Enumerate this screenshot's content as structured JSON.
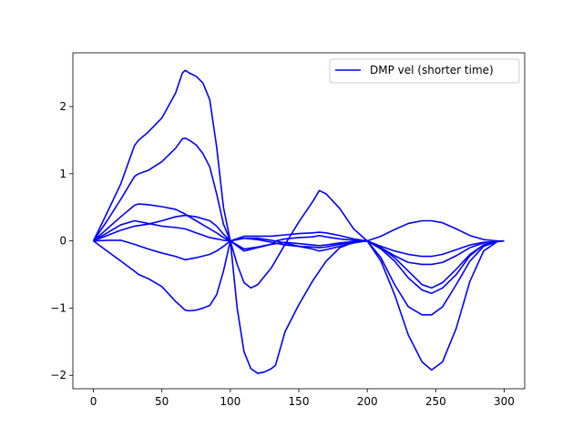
{
  "chart_data": {
    "type": "line",
    "title": "",
    "xlabel": "",
    "ylabel": "",
    "xlim": [
      -15,
      315
    ],
    "ylim": [
      -2.2,
      2.8
    ],
    "xticks": [
      0,
      50,
      100,
      150,
      200,
      250,
      300
    ],
    "yticks": [
      -2,
      -1,
      0,
      1,
      2
    ],
    "xtick_labels": [
      "0",
      "50",
      "100",
      "150",
      "200",
      "250",
      "300"
    ],
    "ytick_labels": [
      "−2",
      "−1",
      "0",
      "1",
      "2"
    ],
    "grid": false,
    "legend": {
      "position": "top-right",
      "entries": [
        "DMP vel (shorter time)"
      ]
    },
    "line_color": "#0000ff",
    "series": [
      {
        "name": "DMP vel (shorter time)",
        "x": [
          0,
          10,
          20,
          30,
          33,
          40,
          50,
          60,
          65,
          67,
          70,
          75,
          80,
          85,
          90,
          95,
          100,
          110,
          120,
          130,
          133,
          140,
          150,
          160,
          165,
          170,
          180,
          190,
          200,
          210,
          220,
          230,
          240,
          247,
          255,
          265,
          275,
          285,
          295,
          300
        ],
        "y": [
          0,
          0.42,
          0.85,
          1.42,
          1.5,
          1.62,
          1.83,
          2.2,
          2.5,
          2.54,
          2.5,
          2.45,
          2.35,
          2.1,
          1.4,
          0.5,
          0,
          -0.15,
          -0.1,
          -0.05,
          0,
          0.03,
          0.05,
          0.06,
          0.08,
          0.06,
          0.03,
          0.01,
          0,
          0.07,
          0.17,
          0.26,
          0.3,
          0.3,
          0.27,
          0.18,
          0.08,
          0.02,
          0,
          0
        ]
      },
      {
        "x": [
          0,
          10,
          20,
          30,
          33,
          40,
          50,
          60,
          65,
          67,
          70,
          75,
          80,
          85,
          90,
          95,
          100,
          110,
          120,
          130,
          140,
          150,
          160,
          165,
          170,
          180,
          190,
          200,
          210,
          220,
          230,
          240,
          247,
          255,
          265,
          275,
          285,
          295,
          300
        ],
        "y": [
          0,
          0.3,
          0.62,
          0.96,
          1.0,
          1.05,
          1.18,
          1.38,
          1.52,
          1.53,
          1.5,
          1.43,
          1.3,
          1.1,
          0.7,
          0.25,
          0,
          -0.12,
          -0.09,
          -0.05,
          -0.02,
          -0.04,
          -0.06,
          -0.07,
          -0.06,
          -0.03,
          -0.01,
          0,
          -0.1,
          -0.25,
          -0.45,
          -0.65,
          -0.7,
          -0.62,
          -0.42,
          -0.2,
          -0.06,
          -0.01,
          0
        ]
      },
      {
        "x": [
          0,
          10,
          20,
          30,
          33,
          40,
          50,
          60,
          67,
          70,
          75,
          80,
          90,
          95,
          100,
          105,
          110,
          115,
          120,
          130,
          140,
          150,
          160,
          165,
          170,
          180,
          190,
          200,
          210,
          220,
          230,
          240,
          247,
          255,
          265,
          275,
          285,
          295,
          300
        ],
        "y": [
          0,
          0.18,
          0.36,
          0.53,
          0.55,
          0.54,
          0.51,
          0.47,
          0.4,
          0.36,
          0.3,
          0.24,
          0.12,
          0.05,
          0,
          -0.35,
          -0.62,
          -0.7,
          -0.65,
          -0.4,
          -0.05,
          0.28,
          0.58,
          0.75,
          0.7,
          0.48,
          0.18,
          0,
          -0.25,
          -0.65,
          -0.98,
          -1.1,
          -1.1,
          -0.98,
          -0.65,
          -0.3,
          -0.08,
          -0.01,
          0
        ]
      },
      {
        "x": [
          0,
          10,
          20,
          30,
          40,
          50,
          60,
          67,
          75,
          85,
          90,
          95,
          100,
          110,
          120,
          130,
          140,
          150,
          160,
          165,
          170,
          180,
          190,
          200,
          210,
          220,
          230,
          240,
          247,
          255,
          265,
          275,
          285,
          295,
          300
        ],
        "y": [
          0,
          0.12,
          0.24,
          0.3,
          0.26,
          0.22,
          0.2,
          0.18,
          0.12,
          0.05,
          0.03,
          0.01,
          0,
          0.04,
          0.04,
          0.01,
          -0.03,
          -0.08,
          -0.12,
          -0.15,
          -0.13,
          -0.08,
          -0.03,
          0,
          -0.12,
          -0.3,
          -0.55,
          -0.73,
          -0.78,
          -0.7,
          -0.5,
          -0.22,
          -0.06,
          -0.01,
          0
        ]
      },
      {
        "x": [
          0,
          10,
          20,
          30,
          40,
          50,
          60,
          67,
          75,
          85,
          90,
          95,
          100,
          110,
          120,
          130,
          140,
          150,
          160,
          165,
          170,
          180,
          190,
          200,
          210,
          220,
          230,
          240,
          247,
          255,
          265,
          275,
          285,
          295,
          300
        ],
        "y": [
          0,
          0.08,
          0.16,
          0.22,
          0.25,
          0.3,
          0.36,
          0.38,
          0.36,
          0.3,
          0.22,
          0.1,
          0,
          0.07,
          0.07,
          0.07,
          0.09,
          0.11,
          0.12,
          0.13,
          0.12,
          0.08,
          0.03,
          0,
          -0.08,
          -0.15,
          -0.2,
          -0.23,
          -0.23,
          -0.2,
          -0.13,
          -0.06,
          -0.02,
          -0.01,
          0
        ]
      },
      {
        "x": [
          0,
          10,
          20,
          30,
          40,
          50,
          60,
          67,
          75,
          85,
          90,
          95,
          100,
          110,
          120,
          130,
          140,
          150,
          160,
          165,
          170,
          180,
          190,
          200,
          210,
          220,
          230,
          240,
          247,
          255,
          265,
          275,
          285,
          295,
          300
        ],
        "y": [
          0,
          0.01,
          0.01,
          -0.05,
          -0.12,
          -0.18,
          -0.23,
          -0.28,
          -0.25,
          -0.2,
          -0.15,
          -0.08,
          0,
          0.04,
          0.02,
          -0.02,
          -0.06,
          -0.08,
          -0.09,
          -0.1,
          -0.09,
          -0.05,
          -0.02,
          0,
          -0.1,
          -0.22,
          -0.32,
          -0.35,
          -0.35,
          -0.32,
          -0.22,
          -0.1,
          -0.03,
          -0.01,
          0
        ]
      },
      {
        "x": [
          0,
          10,
          20,
          30,
          33,
          40,
          50,
          60,
          67,
          70,
          75,
          80,
          85,
          90,
          95,
          100,
          105,
          110,
          115,
          120,
          125,
          130,
          133,
          140,
          150,
          160,
          165,
          170,
          180,
          190,
          200,
          210,
          220,
          230,
          240,
          247,
          255,
          265,
          275,
          285,
          295,
          300
        ],
        "y": [
          0,
          -0.15,
          -0.3,
          -0.45,
          -0.5,
          -0.56,
          -0.68,
          -0.9,
          -1.03,
          -1.04,
          -1.03,
          -1.0,
          -0.96,
          -0.8,
          -0.45,
          0,
          -1.0,
          -1.65,
          -1.9,
          -1.97,
          -1.95,
          -1.9,
          -1.85,
          -1.35,
          -0.95,
          -0.6,
          -0.45,
          -0.3,
          -0.1,
          -0.02,
          0,
          -0.3,
          -0.8,
          -1.4,
          -1.8,
          -1.92,
          -1.8,
          -1.3,
          -0.6,
          -0.15,
          -0.01,
          0
        ]
      }
    ]
  }
}
